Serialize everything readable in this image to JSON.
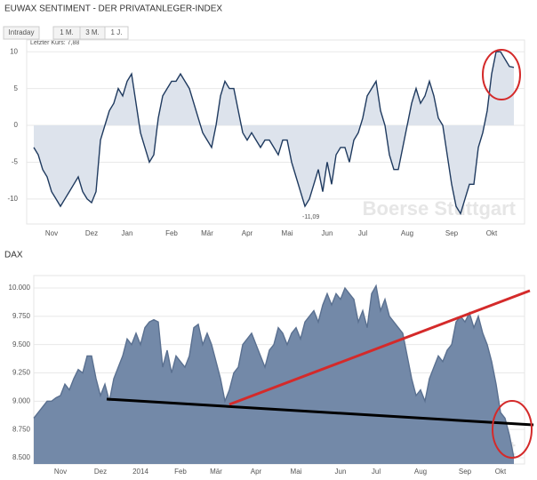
{
  "tabs": [
    "Intraday",
    "1 M.",
    "3 M.",
    "1 J."
  ],
  "chart_data": [
    {
      "type": "area",
      "title": "EUWAX SENTIMENT - DER PRIVATANLEGER-INDEX",
      "annotations": [
        "Letzter Kurs: 7,88",
        "-11,09"
      ],
      "watermark": "Boerse Stuttgart",
      "color": "#1f3a5f",
      "fill": "#dde3ec",
      "grid": true,
      "ylim": [
        -13.4,
        11.6
      ],
      "yticks": [
        -10,
        -5,
        0,
        5,
        10
      ],
      "xticks": [
        {
          "value": 4,
          "label": "Nov"
        },
        {
          "value": 13,
          "label": "Dez"
        },
        {
          "value": 21,
          "label": "Jan"
        },
        {
          "value": 31,
          "label": "Feb"
        },
        {
          "value": 39,
          "label": "Mär"
        },
        {
          "value": 48,
          "label": "Apr"
        },
        {
          "value": 57,
          "label": "Mai"
        },
        {
          "value": 66,
          "label": "Jun"
        },
        {
          "value": 74,
          "label": "Jul"
        },
        {
          "value": 84,
          "label": "Aug"
        },
        {
          "value": 94,
          "label": "Sep"
        },
        {
          "value": 103,
          "label": "Okt"
        }
      ],
      "values": [
        -3,
        -4,
        -6,
        -7,
        -9,
        -10,
        -11,
        -10,
        -9,
        -8,
        -7,
        -9,
        -10,
        -10.5,
        -9,
        -2,
        0,
        2,
        3,
        5,
        4,
        6,
        7,
        3,
        -1,
        -3,
        -5,
        -4,
        1,
        4,
        5,
        6,
        6,
        7,
        6,
        5,
        3,
        1,
        -1,
        -2,
        -3,
        0,
        4,
        6,
        5,
        5,
        2,
        -1,
        -2,
        -1,
        -2,
        -3,
        -2,
        -2,
        -3,
        -4,
        -2,
        -2,
        -5,
        -7,
        -9,
        -11,
        -10,
        -8,
        -6,
        -9,
        -5,
        -8,
        -4,
        -3,
        -3,
        -5,
        -2,
        -1,
        1,
        4,
        5,
        6,
        2,
        0,
        -4,
        -6,
        -6,
        -3,
        0,
        3,
        5,
        3,
        4,
        6,
        4,
        1,
        0,
        -4,
        -8,
        -11,
        -12,
        -10,
        -8,
        -8,
        -3,
        -1,
        2,
        7,
        10,
        10,
        9,
        8,
        7.88
      ]
    },
    {
      "type": "area",
      "title": "DAX",
      "watermark": "Boerse Stuttgart",
      "color": "#5a7090",
      "fill": "#7389a8",
      "grid": true,
      "ylim": [
        8445,
        10110
      ],
      "yticks": [
        {
          "value": 8500,
          "label": "8.500"
        },
        {
          "value": 8750,
          "label": "8.750"
        },
        {
          "value": 9000,
          "label": "9.000"
        },
        {
          "value": 9250,
          "label": "9.250"
        },
        {
          "value": 9500,
          "label": "9.500"
        },
        {
          "value": 9750,
          "label": "9.750"
        },
        {
          "value": 10000,
          "label": "10.000"
        }
      ],
      "xticks": [
        {
          "value": 6,
          "label": "Nov"
        },
        {
          "value": 15,
          "label": "Dez"
        },
        {
          "value": 24,
          "label": "2014"
        },
        {
          "value": 33,
          "label": "Feb"
        },
        {
          "value": 41,
          "label": "Mär"
        },
        {
          "value": 50,
          "label": "Apr"
        },
        {
          "value": 59,
          "label": "Mai"
        },
        {
          "value": 69,
          "label": "Jun"
        },
        {
          "value": 77,
          "label": "Jul"
        },
        {
          "value": 87,
          "label": "Aug"
        },
        {
          "value": 97,
          "label": "Sep"
        },
        {
          "value": 105,
          "label": "Okt"
        }
      ],
      "values": [
        8850,
        8900,
        8950,
        9000,
        9000,
        9030,
        9050,
        9150,
        9100,
        9200,
        9280,
        9250,
        9400,
        9400,
        9200,
        9050,
        9150,
        9000,
        9200,
        9300,
        9400,
        9550,
        9500,
        9600,
        9500,
        9650,
        9700,
        9720,
        9700,
        9300,
        9450,
        9250,
        9400,
        9350,
        9300,
        9400,
        9650,
        9680,
        9500,
        9600,
        9500,
        9350,
        9200,
        9000,
        9100,
        9250,
        9300,
        9500,
        9550,
        9600,
        9500,
        9400,
        9300,
        9450,
        9500,
        9650,
        9600,
        9500,
        9600,
        9650,
        9550,
        9700,
        9750,
        9800,
        9700,
        9850,
        9950,
        9850,
        9950,
        9900,
        10000,
        9950,
        9900,
        9700,
        9800,
        9650,
        9950,
        10020,
        9800,
        9900,
        9750,
        9700,
        9650,
        9600,
        9400,
        9200,
        9050,
        9100,
        9000,
        9200,
        9300,
        9400,
        9350,
        9450,
        9500,
        9700,
        9750,
        9700,
        9780,
        9650,
        9750,
        9600,
        9500,
        9350,
        9150,
        8900,
        8850,
        8700,
        8500
      ]
    }
  ]
}
